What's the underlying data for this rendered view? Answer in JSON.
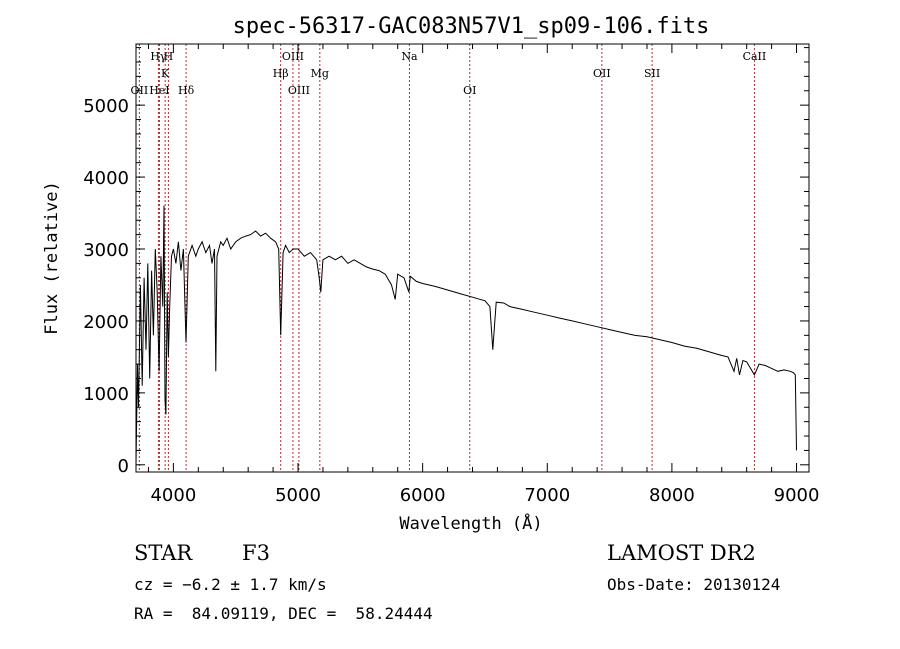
{
  "chart_data": {
    "type": "line",
    "title": "spec-56317-GAC083N57V1_sp09-106.fits",
    "xlabel": "Wavelength (Å)",
    "ylabel": "Flux (relative)",
    "xlim": [
      3700,
      9100
    ],
    "ylim": [
      -100,
      5850
    ],
    "xticks": [
      4000,
      5000,
      6000,
      7000,
      8000,
      9000
    ],
    "yticks": [
      0,
      1000,
      2000,
      3000,
      4000,
      5000
    ],
    "grid": false,
    "line_color": "#000000",
    "marker_color": "#b03030",
    "spectral_lines": [
      {
        "label": "Hγ",
        "wavelength": 3880,
        "row": 0
      },
      {
        "label": "H",
        "wavelength": 3960,
        "row": 0
      },
      {
        "label": "K",
        "wavelength": 3934,
        "row": 1
      },
      {
        "label": "OII",
        "wavelength": 3727,
        "row": 2
      },
      {
        "label": "HeI",
        "wavelength": 3888,
        "row": 2
      },
      {
        "label": "Hδ",
        "wavelength": 4102,
        "row": 2
      },
      {
        "label": "OIII",
        "wavelength": 4959,
        "row": 0
      },
      {
        "label": "Hβ",
        "wavelength": 4861,
        "row": 1
      },
      {
        "label": "Mg",
        "wavelength": 5175,
        "row": 1
      },
      {
        "label": "OIII",
        "wavelength": 5007,
        "row": 2
      },
      {
        "label": "Na",
        "wavelength": 5894,
        "row": 0
      },
      {
        "label": "OI",
        "wavelength": 6378,
        "row": 2
      },
      {
        "label": "OII",
        "wavelength": 7438,
        "row": 1
      },
      {
        "label": "SII",
        "wavelength": 7841,
        "row": 1
      },
      {
        "label": "CaII",
        "wavelength": 8662,
        "row": 0
      }
    ],
    "series": [
      {
        "x": [
          3700,
          3712,
          3720,
          3735,
          3750,
          3765,
          3780,
          3795,
          3810,
          3825,
          3840,
          3855,
          3870,
          3885,
          3900,
          3915,
          3925,
          3933,
          3940,
          3950,
          3960,
          3970,
          3985,
          4000,
          4020,
          4040,
          4060,
          4080,
          4101,
          4120,
          4150,
          4180,
          4200,
          4230,
          4260,
          4290,
          4310,
          4330,
          4340,
          4350,
          4380,
          4400,
          4430,
          4460,
          4500,
          4540,
          4580,
          4620,
          4660,
          4700,
          4740,
          4780,
          4820,
          4845,
          4861,
          4880,
          4900,
          4930,
          4960,
          5000,
          5050,
          5100,
          5150,
          5170,
          5183,
          5200,
          5250,
          5300,
          5350,
          5400,
          5450,
          5500,
          5550,
          5600,
          5650,
          5700,
          5750,
          5780,
          5800,
          5850,
          5890,
          5900,
          5950,
          6000,
          6100,
          6200,
          6300,
          6400,
          6500,
          6540,
          6563,
          6590,
          6650,
          6700,
          6800,
          6900,
          7000,
          7100,
          7200,
          7300,
          7400,
          7500,
          7600,
          7700,
          7800,
          7900,
          8000,
          8100,
          8200,
          8300,
          8400,
          8450,
          8498,
          8520,
          8542,
          8570,
          8600,
          8662,
          8700,
          8750,
          8800,
          8850,
          8900,
          8950,
          8975,
          8990,
          9000
        ],
        "y": [
          0,
          1400,
          800,
          2500,
          1100,
          2600,
          1600,
          2800,
          1200,
          2700,
          1800,
          3000,
          2400,
          1300,
          2900,
          2200,
          3600,
          900,
          700,
          2400,
          1500,
          2200,
          2900,
          3000,
          2800,
          3100,
          2700,
          3000,
          1700,
          2900,
          3050,
          2900,
          3000,
          3100,
          2950,
          3050,
          2800,
          3000,
          1300,
          2900,
          3100,
          3050,
          3150,
          3000,
          3100,
          3150,
          3180,
          3200,
          3250,
          3180,
          3220,
          3150,
          3100,
          3000,
          1800,
          2950,
          3050,
          2950,
          3000,
          3000,
          2900,
          2950,
          2850,
          2600,
          2400,
          2850,
          2900,
          2850,
          2900,
          2800,
          2850,
          2800,
          2750,
          2720,
          2700,
          2650,
          2500,
          2300,
          2650,
          2600,
          2400,
          2620,
          2550,
          2520,
          2480,
          2430,
          2380,
          2330,
          2280,
          2200,
          1600,
          2260,
          2250,
          2200,
          2160,
          2120,
          2080,
          2040,
          2000,
          1960,
          1920,
          1880,
          1840,
          1800,
          1780,
          1740,
          1700,
          1650,
          1620,
          1570,
          1520,
          1500,
          1300,
          1480,
          1250,
          1450,
          1430,
          1250,
          1400,
          1380,
          1340,
          1300,
          1320,
          1300,
          1280,
          1250,
          200
        ]
      }
    ]
  },
  "info": {
    "object_type": "STAR",
    "subclass": "F3",
    "survey": "LAMOST DR2",
    "cz": "cz = −6.2 ± 1.7 km/s",
    "obs_date": "Obs-Date: 20130124",
    "coords": "RA =  84.09119, DEC =  58.24444"
  }
}
